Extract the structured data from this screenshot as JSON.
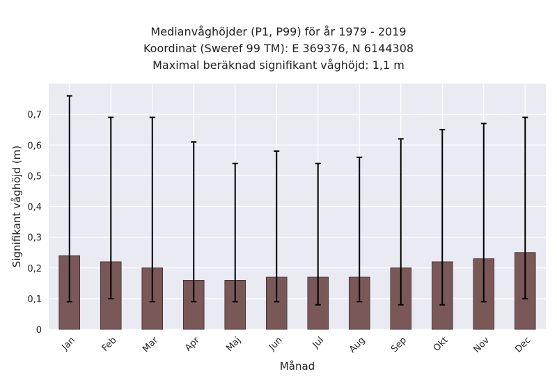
{
  "chart_data": {
    "type": "bar",
    "title_lines": [
      "Medianvåghöjder (P1, P99) för år 1979 - 2019",
      "Koordinat (Sweref 99 TM): E 369376, N 6144308",
      "Maximal beräknad signifikant våghöjd: 1,1 m"
    ],
    "xlabel": "Månad",
    "ylabel": "Signifikant våghöjd (m)",
    "categories": [
      "Jan",
      "Feb",
      "Mar",
      "Apr",
      "Maj",
      "Jun",
      "Jul",
      "Aug",
      "Sep",
      "Okt",
      "Nov",
      "Dec"
    ],
    "values": [
      0.24,
      0.22,
      0.2,
      0.16,
      0.16,
      0.17,
      0.17,
      0.17,
      0.2,
      0.22,
      0.23,
      0.25
    ],
    "p1": [
      0.09,
      0.1,
      0.09,
      0.09,
      0.09,
      0.09,
      0.08,
      0.09,
      0.08,
      0.08,
      0.09,
      0.1
    ],
    "p99": [
      0.76,
      0.69,
      0.69,
      0.61,
      0.54,
      0.58,
      0.54,
      0.56,
      0.62,
      0.65,
      0.67,
      0.69
    ],
    "ylim": [
      0,
      0.8
    ],
    "yticks": [
      0,
      0.1,
      0.2,
      0.3,
      0.4,
      0.5,
      0.6,
      0.7
    ],
    "ytick_labels": [
      "0",
      "0,1",
      "0,2",
      "0,3",
      "0,4",
      "0,5",
      "0,6",
      "0,7"
    ],
    "grid": true,
    "colors": {
      "bar": "#7b5858",
      "bar_edge": "#3a2a2a",
      "error": "#000000",
      "plot_bg": "#eaeaf2",
      "grid": "#ffffff"
    }
  }
}
